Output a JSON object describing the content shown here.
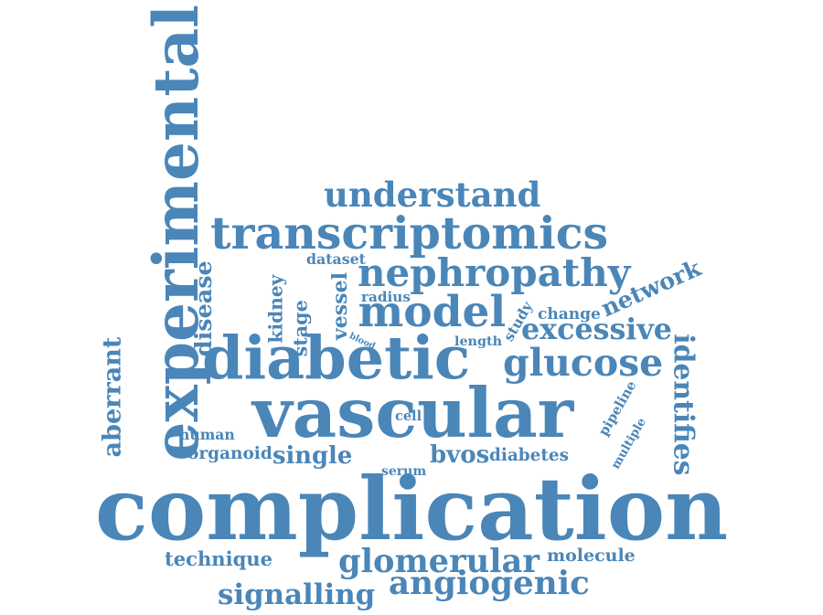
{
  "style": {
    "word_color": "#4a86b8",
    "background": "#ffffff"
  },
  "words": [
    {
      "text": "complication"
    },
    {
      "text": "vascular"
    },
    {
      "text": "diabetic"
    },
    {
      "text": "experimental"
    },
    {
      "text": "transcriptomics"
    },
    {
      "text": "nephropathy"
    },
    {
      "text": "model"
    },
    {
      "text": "glucose"
    },
    {
      "text": "understand"
    },
    {
      "text": "excessive"
    },
    {
      "text": "angiogenic"
    },
    {
      "text": "glomerular"
    },
    {
      "text": "signalling"
    },
    {
      "text": "network"
    },
    {
      "text": "identifies"
    },
    {
      "text": "aberrant"
    },
    {
      "text": "disease"
    },
    {
      "text": "single"
    },
    {
      "text": "bvos"
    },
    {
      "text": "diabetes"
    },
    {
      "text": "organoid"
    },
    {
      "text": "technique"
    },
    {
      "text": "molecule"
    },
    {
      "text": "human"
    },
    {
      "text": "pipeline"
    },
    {
      "text": "multiple"
    },
    {
      "text": "kidney"
    },
    {
      "text": "vessel"
    },
    {
      "text": "stage"
    },
    {
      "text": "dataset"
    },
    {
      "text": "radius"
    },
    {
      "text": "study"
    },
    {
      "text": "change"
    },
    {
      "text": "length"
    },
    {
      "text": "blood"
    },
    {
      "text": "cell"
    },
    {
      "text": "serum"
    }
  ]
}
